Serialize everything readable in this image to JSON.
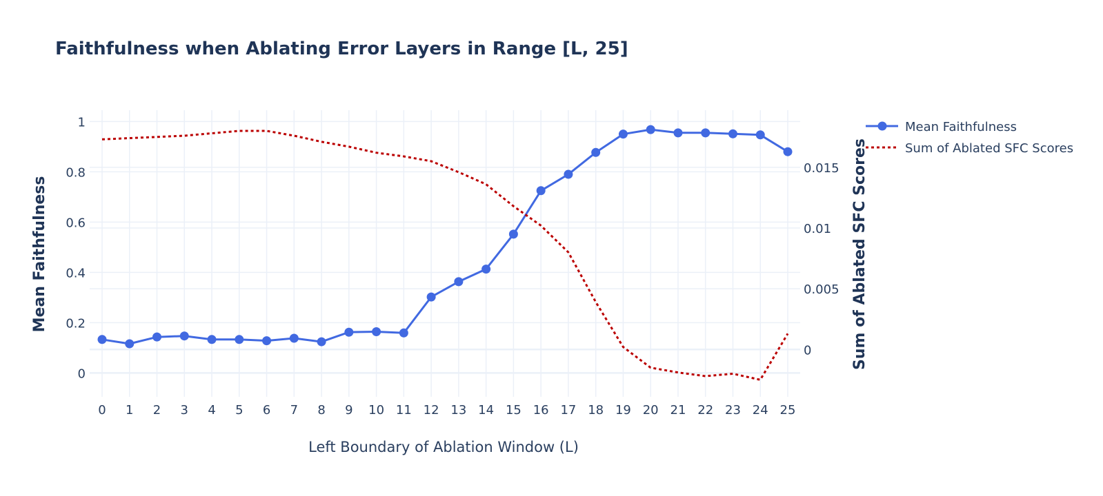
{
  "chart_data": {
    "type": "line",
    "title": "Faithfulness when Ablating Error Layers in Range [L, 25]",
    "xlabel": "Left Boundary of Ablation Window (L)",
    "ylabel": "Mean Faithfulness",
    "y2label": "Sum of Ablated SFC Scores",
    "x": [
      0,
      1,
      2,
      3,
      4,
      5,
      6,
      7,
      8,
      9,
      10,
      11,
      12,
      13,
      14,
      15,
      16,
      17,
      18,
      19,
      20,
      21,
      22,
      23,
      24,
      25
    ],
    "x_tick_labels": [
      "0",
      "1",
      "2",
      "3",
      "4",
      "5",
      "6",
      "7",
      "8",
      "9",
      "10",
      "11",
      "12",
      "13",
      "14",
      "15",
      "16",
      "17",
      "18",
      "19",
      "20",
      "21",
      "22",
      "23",
      "24",
      "25"
    ],
    "ylim": [
      -0.095,
      1.045
    ],
    "y_ticks": [
      0,
      0.2,
      0.4,
      0.6,
      0.8,
      1
    ],
    "y_tick_labels": [
      "0",
      "0.2",
      "0.4",
      "0.6",
      "0.8",
      "1"
    ],
    "y2lim": [
      -0.0039,
      0.0197
    ],
    "y2_ticks": [
      0,
      0.005,
      0.01,
      0.015
    ],
    "y2_tick_labels": [
      "0",
      "0.005",
      "0.01",
      "0.015"
    ],
    "grid": true,
    "legend_position": "top-right outside",
    "series": [
      {
        "name": "Mean Faithfulness",
        "axis": "y",
        "style": "solid-markers",
        "color": "#4169e1",
        "values": [
          0.133,
          0.116,
          0.143,
          0.147,
          0.133,
          0.133,
          0.128,
          0.138,
          0.124,
          0.162,
          0.164,
          0.159,
          0.302,
          0.363,
          0.413,
          0.552,
          0.725,
          0.79,
          0.877,
          0.95,
          0.968,
          0.955,
          0.955,
          0.951,
          0.947,
          0.88
        ]
      },
      {
        "name": "Sum of Ablated SFC Scores",
        "axis": "y2",
        "style": "dotted",
        "color": "#bb0000",
        "values": [
          0.0173,
          0.0174,
          0.0175,
          0.0176,
          0.0178,
          0.018,
          0.018,
          0.0176,
          0.0171,
          0.0167,
          0.0162,
          0.0159,
          0.0155,
          0.0146,
          0.0136,
          0.0118,
          0.0102,
          0.008,
          0.0039,
          0.0002,
          -0.0015,
          -0.0019,
          -0.0022,
          -0.002,
          -0.0025,
          0.0013
        ]
      }
    ]
  }
}
